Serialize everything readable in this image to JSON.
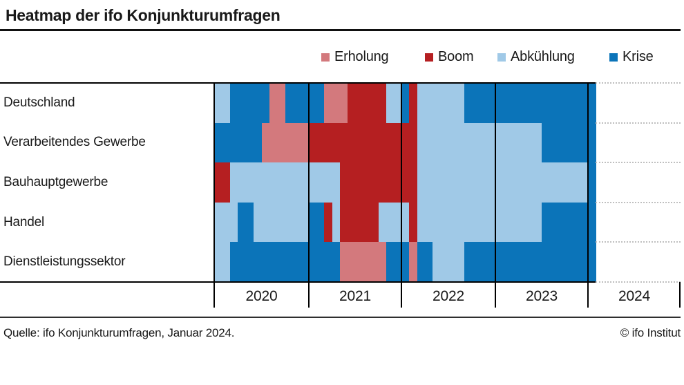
{
  "header": {
    "title": "Heatmap der ifo Konjunkturumfragen"
  },
  "footer": {
    "source": "Quelle: ifo Konjunkturumfragen, Januar 2024.",
    "copyright": "© ifo Institut"
  },
  "chart_data": {
    "type": "heatmap",
    "title": "Heatmap der ifo Konjunkturumfragen",
    "legend_position": "top-right",
    "grid": "dotted row lines only in empty 2024 area",
    "phases": {
      "E": {
        "label": "Erholung",
        "color": "#d3797d"
      },
      "B": {
        "label": "Boom",
        "color": "#b51f21"
      },
      "A": {
        "label": "Abkühlung",
        "color": "#a0c9e7"
      },
      "K": {
        "label": "Krise",
        "color": "#0b74b9"
      }
    },
    "legend_order": [
      "E",
      "B",
      "A",
      "K"
    ],
    "x_axis": {
      "unit": "Monat",
      "years": [
        {
          "label": "2020",
          "months": 12
        },
        {
          "label": "2021",
          "months": 12
        },
        {
          "label": "2022",
          "months": 12
        },
        {
          "label": "2023",
          "months": 12
        },
        {
          "label": "2024",
          "months": 1
        }
      ]
    },
    "rows": [
      {
        "name": "Deutschland",
        "values": [
          "A",
          "A",
          "K",
          "K",
          "K",
          "K",
          "K",
          "E",
          "E",
          "K",
          "K",
          "K",
          "K",
          "K",
          "E",
          "E",
          "E",
          "B",
          "B",
          "B",
          "B",
          "B",
          "A",
          "A",
          "K",
          "B",
          "A",
          "A",
          "A",
          "A",
          "A",
          "A",
          "K",
          "K",
          "K",
          "K",
          "K",
          "K",
          "K",
          "K",
          "K",
          "K",
          "K",
          "K",
          "K",
          "K",
          "K",
          "K",
          "K"
        ]
      },
      {
        "name": "Verarbeitendes Gewerbe",
        "values": [
          "K",
          "K",
          "K",
          "K",
          "K",
          "K",
          "E",
          "E",
          "E",
          "E",
          "E",
          "E",
          "B",
          "B",
          "B",
          "B",
          "B",
          "B",
          "B",
          "B",
          "B",
          "B",
          "B",
          "B",
          "B",
          "B",
          "A",
          "A",
          "A",
          "A",
          "A",
          "A",
          "A",
          "A",
          "A",
          "A",
          "A",
          "A",
          "A",
          "A",
          "A",
          "A",
          "K",
          "K",
          "K",
          "K",
          "K",
          "K",
          "K"
        ]
      },
      {
        "name": "Bauhauptgewerbe",
        "values": [
          "B",
          "B",
          "A",
          "A",
          "A",
          "A",
          "A",
          "A",
          "A",
          "A",
          "A",
          "A",
          "A",
          "A",
          "A",
          "A",
          "B",
          "B",
          "B",
          "B",
          "B",
          "B",
          "B",
          "B",
          "B",
          "B",
          "A",
          "A",
          "A",
          "A",
          "A",
          "A",
          "A",
          "A",
          "A",
          "A",
          "A",
          "A",
          "A",
          "A",
          "A",
          "A",
          "A",
          "A",
          "A",
          "A",
          "A",
          "A",
          "K"
        ]
      },
      {
        "name": "Handel",
        "values": [
          "A",
          "A",
          "A",
          "K",
          "K",
          "A",
          "A",
          "A",
          "A",
          "A",
          "A",
          "A",
          "K",
          "K",
          "B",
          "A",
          "B",
          "B",
          "B",
          "B",
          "B",
          "A",
          "A",
          "A",
          "A",
          "B",
          "A",
          "A",
          "A",
          "A",
          "A",
          "A",
          "A",
          "A",
          "A",
          "A",
          "A",
          "A",
          "A",
          "A",
          "A",
          "A",
          "K",
          "K",
          "K",
          "K",
          "K",
          "K",
          "K"
        ]
      },
      {
        "name": "Dienstleistungssektor",
        "values": [
          "A",
          "A",
          "K",
          "K",
          "K",
          "K",
          "K",
          "K",
          "K",
          "K",
          "K",
          "K",
          "K",
          "K",
          "K",
          "K",
          "E",
          "E",
          "E",
          "E",
          "E",
          "E",
          "K",
          "K",
          "K",
          "E",
          "K",
          "K",
          "A",
          "A",
          "A",
          "A",
          "K",
          "K",
          "K",
          "K",
          "K",
          "K",
          "K",
          "K",
          "K",
          "K",
          "K",
          "K",
          "K",
          "K",
          "K",
          "K",
          "K"
        ]
      }
    ]
  }
}
